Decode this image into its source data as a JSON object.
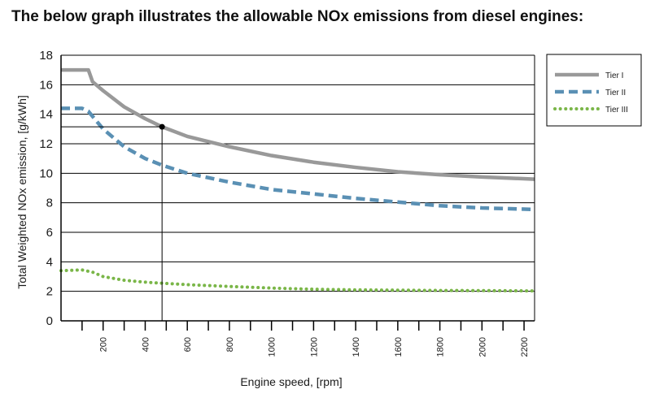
{
  "title": "The below graph illustrates the allowable NOx emissions from diesel engines:",
  "chart_data": {
    "type": "line",
    "title": "",
    "xlabel": "Engine speed,  [rpm]",
    "ylabel": "Total Weighted NOx emission, [g/kWh]",
    "xlim": [
      0,
      2250
    ],
    "ylim": [
      0,
      18
    ],
    "x_ticks": [
      200,
      400,
      600,
      800,
      1000,
      1200,
      1400,
      1600,
      1800,
      2000,
      2200
    ],
    "y_ticks": [
      0,
      2,
      4,
      6,
      8,
      10,
      12,
      14,
      16,
      18
    ],
    "grid": "horizontal",
    "legend_position": "right",
    "series": [
      {
        "name": "Tier  I",
        "color": "#999999",
        "style": "solid",
        "x": [
          0,
          130,
          150,
          200,
          300,
          400,
          480,
          600,
          800,
          1000,
          1200,
          1400,
          1600,
          1800,
          2000,
          2250
        ],
        "y": [
          17.0,
          17.0,
          16.2,
          15.6,
          14.5,
          13.7,
          13.15,
          12.5,
          11.8,
          11.2,
          10.75,
          10.4,
          10.1,
          9.9,
          9.75,
          9.6
        ]
      },
      {
        "name": "Tier II",
        "color": "#5A90B4",
        "style": "dashed",
        "x": [
          0,
          100,
          130,
          200,
          300,
          400,
          480,
          600,
          800,
          1000,
          1200,
          1400,
          1600,
          1800,
          2000,
          2250
        ],
        "y": [
          14.4,
          14.4,
          14.2,
          13.0,
          11.8,
          11.0,
          10.55,
          10.0,
          9.4,
          8.9,
          8.6,
          8.3,
          8.05,
          7.8,
          7.65,
          7.55
        ]
      },
      {
        "name": "Tier III",
        "color": "#7AB648",
        "style": "dotted",
        "x": [
          0,
          100,
          150,
          200,
          300,
          400,
          480,
          600,
          800,
          1000,
          1200,
          1400,
          1600,
          1800,
          2000,
          2250
        ],
        "y": [
          3.4,
          3.45,
          3.3,
          3.0,
          2.75,
          2.62,
          2.55,
          2.45,
          2.33,
          2.22,
          2.14,
          2.1,
          2.08,
          2.06,
          2.05,
          2.03
        ]
      }
    ],
    "annotations": [
      {
        "type": "crosshair-point",
        "x": 480,
        "y": 13.15,
        "series": "Tier  I"
      }
    ]
  }
}
